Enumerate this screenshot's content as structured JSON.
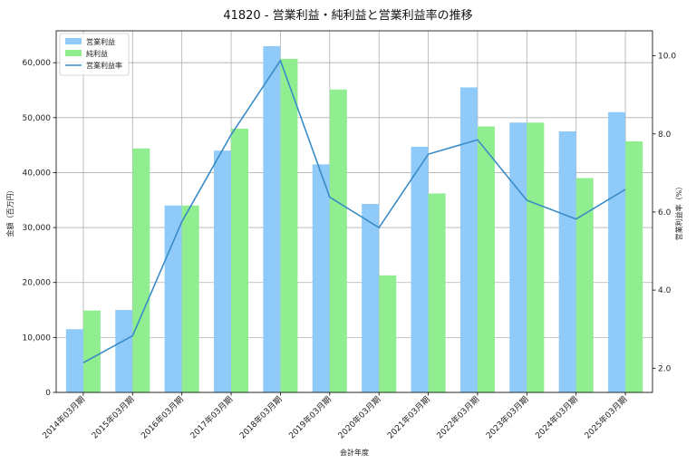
{
  "chart_data": {
    "type": "bar",
    "title": "41820 - 営業利益・純利益と営業利益率の推移",
    "xlabel": "会計年度",
    "ylabel": "金額（百万円）",
    "y2label": "営業利益率（%）",
    "categories": [
      "2014年03月期",
      "2015年03月期",
      "2016年03月期",
      "2017年03月期",
      "2018年03月期",
      "2019年03月期",
      "2020年03月期",
      "2021年03月期",
      "2022年03月期",
      "2023年03月期",
      "2024年03月期",
      "2025年03月期"
    ],
    "series": [
      {
        "name": "営業利益",
        "type": "bar",
        "axis": "left",
        "color": "#90caf9",
        "values": [
          11500,
          15000,
          34000,
          44000,
          63000,
          41500,
          34300,
          44700,
          55500,
          49100,
          47500,
          51000
        ]
      },
      {
        "name": "純利益",
        "type": "bar",
        "axis": "left",
        "color": "#90ee90",
        "values": [
          14900,
          44400,
          34000,
          48000,
          60700,
          55100,
          21300,
          36200,
          48400,
          49100,
          39000,
          45700
        ]
      },
      {
        "name": "営業利益率",
        "type": "line",
        "axis": "right",
        "color": "#3a8cc7",
        "values": [
          2.14,
          2.83,
          5.75,
          7.98,
          9.88,
          6.38,
          5.6,
          7.48,
          7.85,
          6.3,
          5.82,
          6.58
        ]
      }
    ],
    "ylim": [
      0,
      65800
    ],
    "y_ticks": [
      0,
      10000,
      20000,
      30000,
      40000,
      50000,
      60000
    ],
    "y_tick_labels": [
      "0",
      "10,000",
      "20,000",
      "30,000",
      "40,000",
      "50,000",
      "60,000"
    ],
    "y2lim": [
      1.38,
      10.64
    ],
    "y2_ticks": [
      2.0,
      4.0,
      6.0,
      8.0,
      10.0
    ],
    "y2_tick_labels": [
      "2.0",
      "4.0",
      "6.0",
      "8.0",
      "10.0"
    ],
    "grid": true,
    "legend_position": "top-left"
  }
}
